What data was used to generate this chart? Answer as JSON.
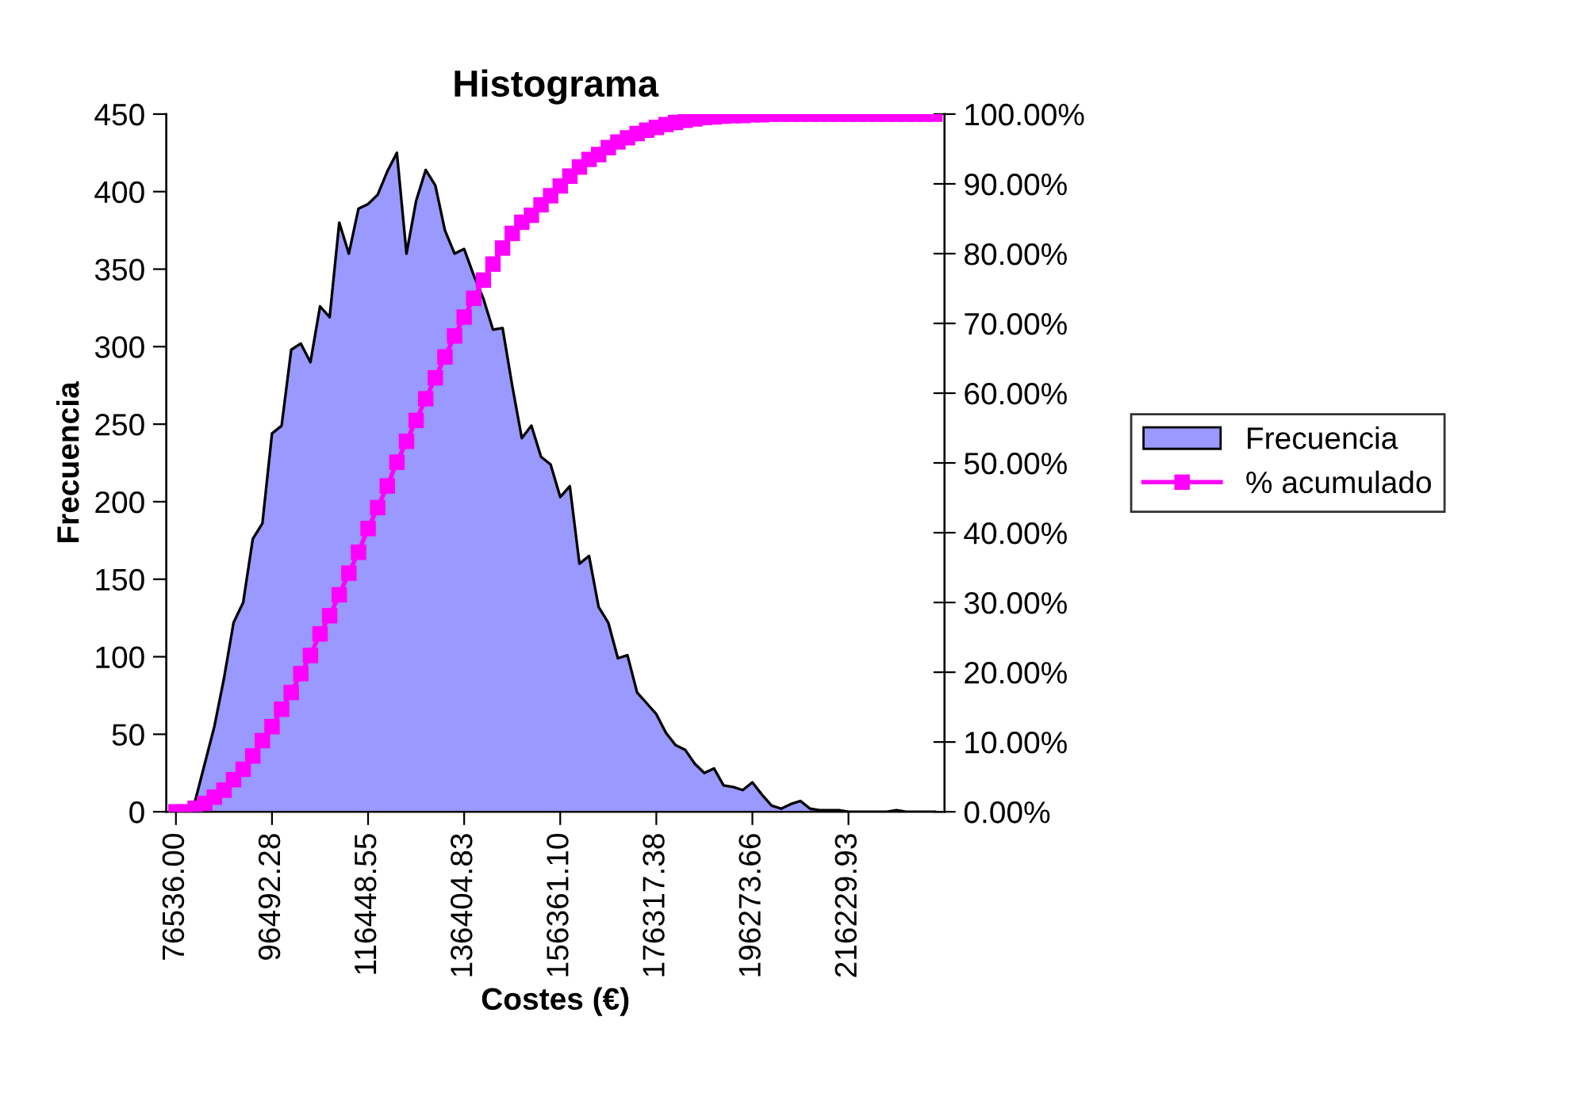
{
  "chart_data": {
    "type": "area",
    "title": "Histograma",
    "xlabel": "Costes (€)",
    "ylabel": "Frecuencia",
    "categories": [
      "76536.00",
      null,
      null,
      null,
      null,
      null,
      null,
      null,
      null,
      null,
      "96492.28",
      null,
      null,
      null,
      null,
      null,
      null,
      null,
      null,
      null,
      "116448.55",
      null,
      null,
      null,
      null,
      null,
      null,
      null,
      null,
      null,
      "136404.83",
      null,
      null,
      null,
      null,
      null,
      null,
      null,
      null,
      null,
      "156361.10",
      null,
      null,
      null,
      null,
      null,
      null,
      null,
      null,
      null,
      "176317.38",
      null,
      null,
      null,
      null,
      null,
      null,
      null,
      null,
      null,
      "196273.66",
      null,
      null,
      null,
      null,
      null,
      null,
      null,
      null,
      null,
      "216229.93",
      null,
      null,
      null,
      null,
      null,
      null,
      null,
      null,
      null
    ],
    "series": [
      {
        "name": "Frecuencia",
        "color": "#9999ff",
        "values": [
          0,
          0,
          7,
          31,
          55,
          86,
          122,
          135,
          176,
          186,
          244,
          249,
          298,
          302,
          290,
          326,
          319,
          380,
          360,
          389,
          392,
          398,
          413,
          425,
          360,
          394,
          414,
          404,
          375,
          360,
          363,
          346,
          331,
          311,
          312,
          275,
          241,
          249,
          229,
          224,
          203,
          210,
          160,
          165,
          132,
          122,
          99,
          101,
          77,
          70,
          63,
          51,
          43,
          40,
          31,
          25,
          28,
          17,
          16,
          14,
          19,
          11,
          4,
          2,
          5,
          7,
          2,
          1,
          1,
          1,
          0,
          0,
          0,
          0,
          0,
          1,
          0,
          0,
          0,
          0
        ]
      },
      {
        "name": "% acumulado",
        "type": "line",
        "axis": "y2",
        "color": "#ff00ff",
        "marker": "square",
        "values": [
          0,
          0,
          0.5,
          1.2,
          2.1,
          3.1,
          4.6,
          6.1,
          8.0,
          10.2,
          12.2,
          14.7,
          17.1,
          19.8,
          22.4,
          25.5,
          28.1,
          31.1,
          34.2,
          37.2,
          40.6,
          43.6,
          46.7,
          50.1,
          53.1,
          56.1,
          59.2,
          62.2,
          65.2,
          68.2,
          70.9,
          73.6,
          76.2,
          78.5,
          80.8,
          82.9,
          84.5,
          85.5,
          87.0,
          88.3,
          89.7,
          91.1,
          92.4,
          93.5,
          94.2,
          95.2,
          96.0,
          96.6,
          97.2,
          97.7,
          98.1,
          98.5,
          98.8,
          99.1,
          99.3,
          99.5,
          99.6,
          99.7,
          99.8,
          99.8,
          99.9,
          99.9,
          100,
          100,
          100,
          100,
          100,
          100,
          100,
          100,
          100,
          100,
          100,
          100,
          100,
          100,
          100,
          100,
          100,
          100
        ]
      }
    ],
    "ylim": [
      0,
      450
    ],
    "yticks": [
      0,
      50,
      100,
      150,
      200,
      250,
      300,
      350,
      400,
      450
    ],
    "y2lim": [
      0,
      100
    ],
    "y2ticks": [
      {
        "value": 0,
        "label": "0.00%"
      },
      {
        "value": 10,
        "label": "10.00%"
      },
      {
        "value": 20,
        "label": "20.00%"
      },
      {
        "value": 30,
        "label": "30.00%"
      },
      {
        "value": 40,
        "label": "40.00%"
      },
      {
        "value": 50,
        "label": "50.00%"
      },
      {
        "value": 60,
        "label": "60.00%"
      },
      {
        "value": 70,
        "label": "70.00%"
      },
      {
        "value": 80,
        "label": "80.00%"
      },
      {
        "value": 90,
        "label": "90.00%"
      },
      {
        "value": 100,
        "label": "100.00%"
      }
    ],
    "grid": false,
    "legend": "right"
  }
}
